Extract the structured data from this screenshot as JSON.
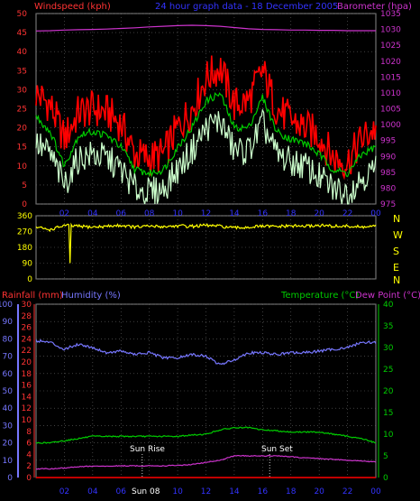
{
  "header": {
    "left_label": "Windspeed (kph)",
    "center_label": "24 hour graph data - 18 December 2005",
    "right_label": "Barometer (hpa)"
  },
  "bottom_header": {
    "rainfall_label": "Rainfall (mm)",
    "humidity_label": "Humidity (%)",
    "temperature_label": "Temperature (°C)",
    "dewpoint_label": "Dew Point (°C)"
  },
  "x_ticks": [
    "02",
    "04",
    "06",
    "08",
    "10",
    "12",
    "14",
    "16",
    "18",
    "20",
    "22",
    "00"
  ],
  "compass": [
    "N",
    "W",
    "S",
    "E",
    "N"
  ],
  "annotations": {
    "sunrise": "Sun Rise",
    "sunset": "Sun Set",
    "axis_extra": "Sun 08"
  },
  "colors": {
    "gust": "#ff0000",
    "average": "#00cc00",
    "wind_min": "#ccffcc",
    "barometer": "#cc33cc",
    "direction": "#ffff00",
    "humidity": "#7777ff",
    "temperature": "#00cc00",
    "dewpoint": "#cc33cc",
    "rainfall": "#ff0000",
    "grid": "#666666",
    "text_blue": "#3333ff"
  },
  "chart_data": [
    {
      "type": "line",
      "name": "wind-and-barometer",
      "x": [
        0,
        1,
        2,
        3,
        4,
        5,
        6,
        7,
        8,
        9,
        10,
        11,
        12,
        13,
        14,
        15,
        16,
        17,
        18,
        19,
        20,
        21,
        22,
        23,
        24
      ],
      "x_tick_labels": [
        "02",
        "04",
        "06",
        "08",
        "10",
        "12",
        "14",
        "16",
        "18",
        "20",
        "22",
        "00"
      ],
      "ylim_left": [
        0,
        50
      ],
      "yticks_left": [
        0,
        5,
        10,
        15,
        20,
        25,
        30,
        35,
        40,
        45,
        50
      ],
      "ylim_right": [
        975,
        1035
      ],
      "yticks_right": [
        975,
        980,
        985,
        990,
        995,
        1000,
        1005,
        1010,
        1015,
        1020,
        1025,
        1030,
        1035
      ],
      "series": [
        {
          "axis": "left",
          "values": [
            29,
            26,
            17,
            24,
            25,
            24,
            21,
            13,
            12,
            13,
            20,
            25,
            33,
            36,
            26,
            27,
            35,
            25,
            22,
            20,
            18,
            12,
            11,
            17,
            20
          ]
        },
        {
          "axis": "left",
          "values": [
            23,
            19,
            10,
            18,
            19,
            18,
            15,
            9,
            8,
            9,
            15,
            20,
            27,
            29,
            20,
            20,
            28,
            19,
            17,
            16,
            13,
            9,
            8,
            13,
            15
          ]
        },
        {
          "axis": "left",
          "values": [
            16,
            13,
            5,
            12,
            13,
            12,
            9,
            4,
            3,
            4,
            9,
            14,
            20,
            22,
            14,
            14,
            21,
            13,
            11,
            10,
            7,
            4,
            3,
            7,
            9
          ]
        },
        {
          "axis": "right",
          "values": [
            1029.5,
            1029.6,
            1029.8,
            1029.9,
            1030.0,
            1030.1,
            1030.3,
            1030.5,
            1030.8,
            1031.0,
            1031.2,
            1031.3,
            1031.2,
            1031.0,
            1030.6,
            1030.2,
            1030.0,
            1029.9,
            1029.8,
            1029.8,
            1029.7,
            1029.7,
            1029.6,
            1029.6,
            1029.6
          ]
        }
      ]
    },
    {
      "type": "line",
      "name": "wind-direction",
      "x": [
        0,
        1,
        2,
        3,
        4,
        5,
        6,
        7,
        8,
        9,
        10,
        11,
        12,
        13,
        14,
        15,
        16,
        17,
        18,
        19,
        20,
        21,
        22,
        23,
        24
      ],
      "ylim": [
        0,
        360
      ],
      "yticks": [
        0,
        90,
        180,
        270,
        360
      ],
      "series": [
        {
          "values": [
            295,
            280,
            305,
            300,
            295,
            300,
            305,
            295,
            300,
            298,
            302,
            300,
            305,
            300,
            290,
            295,
            300,
            298,
            302,
            300,
            305,
            300,
            300,
            295,
            300
          ]
        }
      ]
    },
    {
      "type": "line",
      "name": "humidity-temperature",
      "x": [
        0,
        1,
        2,
        3,
        4,
        5,
        6,
        7,
        8,
        9,
        10,
        11,
        12,
        13,
        14,
        15,
        16,
        17,
        18,
        19,
        20,
        21,
        22,
        23,
        24
      ],
      "ylim_humidity": [
        0,
        100
      ],
      "yticks_humidity": [
        0,
        10,
        20,
        30,
        40,
        50,
        60,
        70,
        80,
        90,
        100
      ],
      "ylim_rain": [
        0,
        30
      ],
      "yticks_rain": [
        0,
        2,
        4,
        6,
        8,
        10,
        12,
        14,
        16,
        18,
        20,
        22,
        24,
        26,
        28,
        30
      ],
      "ylim_temp": [
        0,
        40
      ],
      "yticks_temp": [
        0,
        5,
        10,
        15,
        20,
        25,
        30,
        35,
        40
      ],
      "series": [
        {
          "axis": "humidity",
          "values": [
            79,
            78,
            74,
            77,
            75,
            72,
            73,
            71,
            72,
            69,
            69,
            71,
            70,
            65,
            68,
            72,
            72,
            71,
            72,
            72,
            73,
            74,
            75,
            78,
            78
          ]
        },
        {
          "axis": "temp",
          "values": [
            8,
            8,
            8.5,
            9,
            9.5,
            9.5,
            9.5,
            9.5,
            9.5,
            9.5,
            9.5,
            9.8,
            10,
            11,
            11.5,
            11.5,
            11,
            10.8,
            10.5,
            10.5,
            10.5,
            10,
            9.5,
            9,
            8
          ]
        },
        {
          "axis": "temp",
          "values": [
            2,
            2,
            2.2,
            2.5,
            2.6,
            2.6,
            2.7,
            2.7,
            2.7,
            2.7,
            2.8,
            3,
            3.5,
            4,
            5,
            5,
            5,
            5,
            4.8,
            4.5,
            4.4,
            4.2,
            4,
            3.8,
            3.6
          ]
        },
        {
          "axis": "rain",
          "values": [
            0,
            0,
            0,
            0,
            0,
            0,
            0,
            0,
            0,
            0,
            0,
            0,
            0,
            0,
            0,
            0,
            0,
            0,
            0,
            0,
            0,
            0,
            0,
            0,
            0
          ]
        }
      ]
    }
  ]
}
